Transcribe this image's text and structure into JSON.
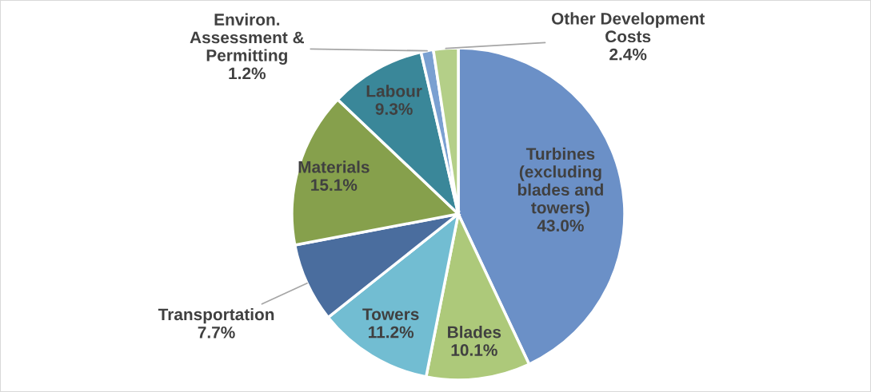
{
  "chart_data": {
    "type": "pie",
    "categories": [
      "Turbines\n(excluding\nblades and\ntowers)",
      "Blades",
      "Towers",
      "Transportation",
      "Materials",
      "Labour",
      "Environ.\nAssessment &\nPermitting",
      "Other Development\nCosts"
    ],
    "values": [
      43.0,
      10.1,
      11.2,
      7.7,
      15.1,
      9.3,
      1.2,
      2.4
    ],
    "value_labels": [
      "43.0%",
      "10.1%",
      "11.2%",
      "7.7%",
      "15.1%",
      "9.3%",
      "1.2%",
      "2.4%"
    ],
    "colors": [
      "#6b90c7",
      "#adc97a",
      "#72bdd2",
      "#4a6d9e",
      "#86a04c",
      "#3a8799",
      "#7aa0d1",
      "#b4cf88"
    ]
  }
}
